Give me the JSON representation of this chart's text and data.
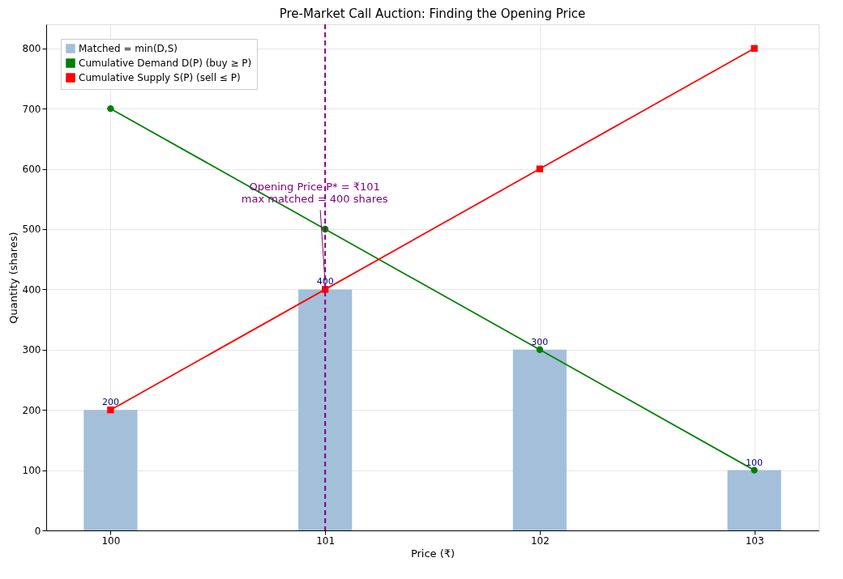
{
  "chart_data": {
    "type": "line",
    "title": "Pre-Market Call Auction: Finding the Opening Price",
    "xlabel": "Price (₹)",
    "ylabel": "Quantity (shares)",
    "x": [
      100,
      101,
      102,
      103
    ],
    "series": [
      {
        "name": "Matched = min(D,S)",
        "type": "bar",
        "color": "#a3bfd9",
        "values": [
          200,
          400,
          300,
          100
        ],
        "data_labels": true
      },
      {
        "name": "Cumulative Demand D(P) (buy ≥ P)",
        "color": "#008000",
        "marker": "circle",
        "values": [
          700,
          500,
          300,
          100
        ]
      },
      {
        "name": "Cumulative Supply S(P) (sell ≤ P)",
        "color": "#ff0000",
        "marker": "square",
        "values": [
          200,
          400,
          600,
          800
        ]
      }
    ],
    "xlim": [
      99.7,
      103.3
    ],
    "xticks": [
      100,
      101,
      102,
      103
    ],
    "ylim": [
      0,
      840
    ],
    "yticks": [
      0,
      100,
      200,
      300,
      400,
      500,
      600,
      700,
      800
    ],
    "ref_lines": [
      {
        "axis": "x",
        "value": 101,
        "color": "#800080",
        "line_style": "dashed"
      }
    ],
    "annotations": [
      {
        "text": "Opening Price P* = ₹101\nmax matched = 400 shares",
        "x": 101,
        "y": 400
      }
    ],
    "grid": true,
    "legend": "top left",
    "line_style": "solid"
  }
}
